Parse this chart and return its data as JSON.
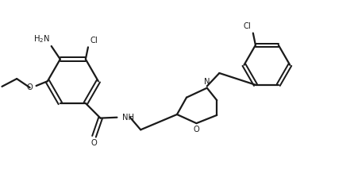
{
  "bg_color": "#ffffff",
  "bond_color": "#1a1a1a",
  "label_color": "#1a1a1a",
  "lw": 1.6,
  "figsize": [
    4.46,
    2.24
  ],
  "dpi": 100,
  "xlim": [
    0,
    10
  ],
  "ylim": [
    0,
    5
  ],
  "fs": 7.2
}
